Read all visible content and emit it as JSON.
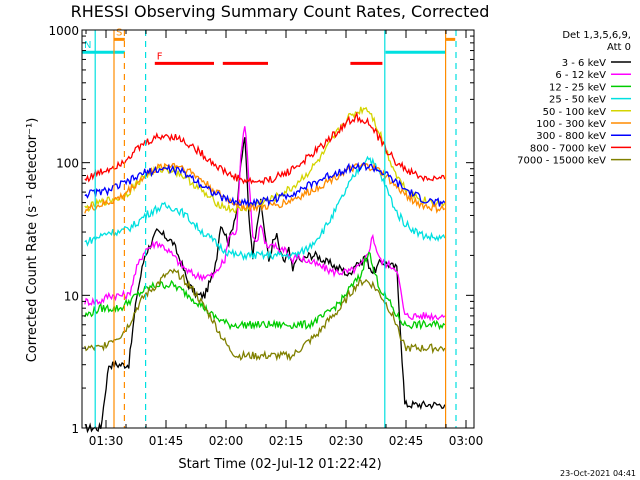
{
  "chart_data": {
    "type": "line",
    "title": "RHESSI Observing Summary Count Rates, Corrected",
    "xlabel": "Start Time (02-Jul-12 01:22:42)",
    "ylabel": "Corrected Count Rate (s⁻¹ detector⁻¹)",
    "yscale": "log",
    "ylim": [
      1,
      1000
    ],
    "xlim_minutes": [
      1.3,
      99.3
    ],
    "xticks": [
      {
        "minute": 7.3,
        "label": "01:30"
      },
      {
        "minute": 22.3,
        "label": "01:45"
      },
      {
        "minute": 37.3,
        "label": "02:00"
      },
      {
        "minute": 52.3,
        "label": "02:15"
      },
      {
        "minute": 67.3,
        "label": "02:30"
      },
      {
        "minute": 82.3,
        "label": "02:45"
      },
      {
        "minute": 97.3,
        "label": "03:00"
      }
    ],
    "yticks": [
      {
        "value": 1,
        "label": "1"
      },
      {
        "value": 10,
        "label": "10"
      },
      {
        "value": 100,
        "label": "100"
      },
      {
        "value": 1000,
        "label": "1000"
      }
    ],
    "legend_header": [
      "Det 1,3,5,6,9,",
      "Att 0"
    ],
    "legend_placement": "right",
    "series": [
      {
        "name": "3 - 6 keV",
        "color": "#000000",
        "x": [
          2,
          6,
          8,
          11,
          13,
          15,
          17,
          20,
          22,
          24,
          26,
          28,
          30,
          32,
          33,
          34,
          35,
          36,
          38,
          40,
          41,
          42,
          43,
          44,
          45,
          46,
          47,
          48,
          49,
          50,
          51,
          52,
          53,
          54,
          55,
          56,
          58,
          60,
          62,
          64,
          65,
          66,
          67,
          68,
          69,
          70,
          71,
          72,
          73,
          74,
          75,
          76,
          78,
          80,
          82,
          85,
          87,
          90,
          92
        ],
        "y": [
          1,
          1,
          3,
          3,
          3,
          10,
          20,
          30,
          28,
          25,
          18,
          12,
          10,
          10,
          12,
          14,
          20,
          35,
          25,
          45,
          95,
          160,
          40,
          20,
          35,
          50,
          30,
          18,
          25,
          28,
          20,
          18,
          22,
          15,
          20,
          18,
          20,
          20,
          18,
          17,
          16,
          16,
          15,
          14,
          16,
          18,
          17,
          20,
          17,
          15,
          16,
          18,
          17,
          16,
          1.5,
          1.5,
          1.5,
          1.5,
          1.5
        ]
      },
      {
        "name": "6 - 12 keV",
        "color": "#ff00ff",
        "x": [
          2,
          6,
          8,
          11,
          13,
          15,
          17,
          20,
          22,
          24,
          26,
          28,
          30,
          32,
          34,
          35,
          36,
          37,
          38,
          40,
          41,
          42,
          43,
          44,
          45,
          46,
          47,
          48,
          49,
          50,
          51,
          52,
          53,
          54,
          55,
          56,
          58,
          60,
          62,
          64,
          66,
          68,
          70,
          72,
          73,
          74,
          75,
          76,
          78,
          80,
          82,
          85,
          87,
          90,
          92
        ],
        "y": [
          9,
          9,
          10,
          10,
          10,
          16,
          22,
          25,
          23,
          20,
          17,
          15,
          14,
          14,
          14,
          15,
          17,
          18,
          28,
          30,
          120,
          200,
          80,
          28,
          25,
          35,
          25,
          22,
          24,
          23,
          22,
          23,
          20,
          18,
          20,
          19,
          18,
          17,
          16,
          15,
          15,
          15,
          16,
          18,
          22,
          28,
          22,
          18,
          17,
          16,
          7,
          7,
          7,
          7,
          7
        ]
      },
      {
        "name": "12 - 25 keV",
        "color": "#00cc00",
        "x": [
          2,
          6,
          8,
          11,
          13,
          15,
          17,
          20,
          22,
          24,
          26,
          28,
          30,
          32,
          34,
          36,
          38,
          40,
          42,
          44,
          46,
          48,
          50,
          52,
          54,
          56,
          58,
          60,
          62,
          64,
          66,
          68,
          70,
          71,
          72,
          73,
          74,
          76,
          78,
          80,
          82,
          85,
          87,
          90,
          92
        ],
        "y": [
          7,
          8,
          8,
          8,
          9,
          10,
          11,
          12,
          12,
          12,
          11,
          10,
          9,
          8,
          7,
          6.5,
          6,
          6,
          6,
          6,
          6,
          6,
          6,
          6,
          6,
          6,
          6,
          6.5,
          7,
          8,
          9,
          11,
          13,
          14,
          18,
          22,
          16,
          11,
          9,
          7,
          6,
          6,
          6,
          6,
          6
        ]
      },
      {
        "name": "25 - 50 keV",
        "color": "#00e0e0",
        "x": [
          2,
          6,
          8,
          11,
          13,
          15,
          17,
          20,
          22,
          24,
          26,
          28,
          30,
          32,
          34,
          36,
          38,
          40,
          42,
          44,
          46,
          48,
          50,
          52,
          54,
          56,
          58,
          60,
          62,
          64,
          66,
          68,
          70,
          72,
          73,
          74,
          76,
          78,
          80,
          82,
          85,
          87,
          90,
          92
        ],
        "y": [
          25,
          28,
          30,
          30,
          32,
          35,
          40,
          45,
          47,
          46,
          43,
          38,
          33,
          29,
          26,
          23,
          21,
          20,
          20,
          20,
          20,
          20,
          20,
          20,
          20,
          21,
          23,
          27,
          32,
          40,
          52,
          68,
          85,
          105,
          110,
          100,
          80,
          58,
          42,
          35,
          30,
          28,
          27,
          27
        ]
      },
      {
        "name": "50 - 100 keV",
        "color": "#d4d400",
        "x": [
          2,
          6,
          8,
          11,
          13,
          15,
          17,
          20,
          22,
          24,
          26,
          28,
          30,
          32,
          34,
          36,
          38,
          40,
          42,
          44,
          46,
          48,
          50,
          52,
          54,
          56,
          58,
          60,
          62,
          64,
          66,
          68,
          70,
          72,
          73,
          74,
          76,
          78,
          80,
          82,
          85,
          87,
          90,
          92
        ],
        "y": [
          45,
          50,
          52,
          55,
          60,
          70,
          80,
          88,
          90,
          88,
          82,
          74,
          66,
          58,
          52,
          48,
          45,
          44,
          45,
          48,
          50,
          52,
          55,
          60,
          65,
          75,
          85,
          100,
          120,
          150,
          185,
          220,
          240,
          260,
          250,
          220,
          160,
          110,
          80,
          65,
          55,
          52,
          50,
          50
        ]
      },
      {
        "name": "100 - 300 keV",
        "color": "#ff8c00",
        "x": [
          2,
          6,
          8,
          11,
          13,
          15,
          17,
          20,
          22,
          24,
          26,
          28,
          30,
          32,
          34,
          36,
          38,
          40,
          42,
          44,
          46,
          48,
          50,
          52,
          54,
          56,
          58,
          60,
          62,
          64,
          66,
          68,
          70,
          72,
          74,
          76,
          78,
          80,
          82,
          85,
          87,
          90,
          92
        ],
        "y": [
          44,
          48,
          50,
          55,
          62,
          70,
          80,
          90,
          95,
          97,
          94,
          87,
          79,
          71,
          63,
          57,
          52,
          49,
          47,
          46,
          46,
          47,
          48,
          50,
          53,
          56,
          60,
          65,
          70,
          76,
          83,
          88,
          92,
          94,
          92,
          85,
          75,
          65,
          58,
          50,
          47,
          45,
          45
        ]
      },
      {
        "name": "300 - 800 keV",
        "color": "#0000ff",
        "x": [
          2,
          6,
          8,
          11,
          13,
          15,
          17,
          20,
          22,
          24,
          26,
          28,
          30,
          32,
          34,
          36,
          38,
          40,
          42,
          44,
          46,
          48,
          50,
          52,
          54,
          56,
          58,
          60,
          62,
          64,
          66,
          68,
          70,
          72,
          74,
          76,
          78,
          80,
          82,
          85,
          87,
          90,
          92
        ],
        "y": [
          58,
          60,
          62,
          68,
          72,
          78,
          84,
          88,
          90,
          89,
          86,
          80,
          73,
          66,
          60,
          55,
          52,
          50,
          50,
          50,
          51,
          52,
          54,
          56,
          59,
          63,
          67,
          72,
          77,
          82,
          87,
          91,
          93,
          94,
          92,
          86,
          78,
          70,
          63,
          56,
          52,
          50,
          50
        ]
      },
      {
        "name": "800 - 7000 keV",
        "color": "#ff0000",
        "x": [
          2,
          6,
          8,
          11,
          13,
          15,
          17,
          20,
          22,
          24,
          26,
          28,
          30,
          32,
          34,
          36,
          38,
          40,
          42,
          44,
          46,
          48,
          50,
          52,
          54,
          56,
          58,
          60,
          62,
          64,
          66,
          68,
          70,
          72,
          74,
          76,
          78,
          80,
          82,
          85,
          87,
          90,
          92
        ],
        "y": [
          75,
          85,
          90,
          100,
          112,
          125,
          140,
          155,
          160,
          158,
          150,
          138,
          125,
          112,
          100,
          90,
          82,
          77,
          73,
          72,
          72,
          74,
          78,
          83,
          90,
          99,
          110,
          124,
          140,
          160,
          182,
          205,
          220,
          210,
          180,
          145,
          118,
          100,
          90,
          80,
          76,
          75,
          75
        ]
      },
      {
        "name": "7000 - 15000 keV",
        "color": "#808000",
        "x": [
          2,
          6,
          8,
          11,
          13,
          15,
          17,
          20,
          22,
          24,
          26,
          28,
          30,
          32,
          34,
          36,
          38,
          40,
          42,
          44,
          46,
          48,
          50,
          52,
          54,
          56,
          58,
          60,
          62,
          64,
          66,
          68,
          70,
          72,
          74,
          76,
          78,
          80,
          82,
          85,
          87,
          90,
          92
        ],
        "y": [
          4,
          4,
          4.5,
          5,
          6,
          8,
          10,
          12,
          14,
          15,
          14,
          12,
          10,
          8,
          6.5,
          5,
          4,
          3.5,
          3.5,
          3.5,
          3.5,
          3.5,
          3.5,
          3.5,
          3.5,
          4,
          4.5,
          5,
          6,
          7,
          8,
          10,
          12,
          13,
          12,
          10,
          8,
          6,
          4,
          4,
          4,
          4,
          4
        ]
      }
    ],
    "state_bars": [
      {
        "label": "S",
        "color": "#ff8c00",
        "x_start": 9.3,
        "x_end": 12.0,
        "level": 850
      },
      {
        "label": "F",
        "color": "#ff0000",
        "x_start": 19.5,
        "x_end": 34.3,
        "level": 560
      },
      {
        "label": "",
        "color": "#ff0000",
        "x_start": 36.5,
        "x_end": 47.8,
        "level": 560
      },
      {
        "label": "",
        "color": "#ff0000",
        "x_start": 68.4,
        "x_end": 76.4,
        "level": 560
      },
      {
        "label": "",
        "color": "#ff8c00",
        "x_start": 92.3,
        "x_end": 94.6,
        "level": 850
      },
      {
        "label": "N",
        "color": "#00e0e0",
        "x_start": 1.3,
        "x_end": 12.0,
        "level": 680
      },
      {
        "label": "",
        "color": "#00e0e0",
        "x_start": 77.2,
        "x_end": 92.3,
        "level": 680
      }
    ],
    "markers": [
      {
        "color": "#ff8c00",
        "style": "solid",
        "x": 9.3
      },
      {
        "color": "#ff8c00",
        "style": "dashed",
        "x": 11.9
      },
      {
        "color": "#00e0e0",
        "style": "solid",
        "x": 4.6
      },
      {
        "color": "#00e0e0",
        "style": "dashed",
        "x": 17.2
      },
      {
        "color": "#ff8c00",
        "style": "solid",
        "x": 92.2
      },
      {
        "color": "#00e0e0",
        "style": "solid",
        "x": 77.0
      },
      {
        "color": "#00e0e0",
        "style": "dashed",
        "x": 94.8
      }
    ],
    "footer_date": "23-Oct-2021 04:41"
  }
}
